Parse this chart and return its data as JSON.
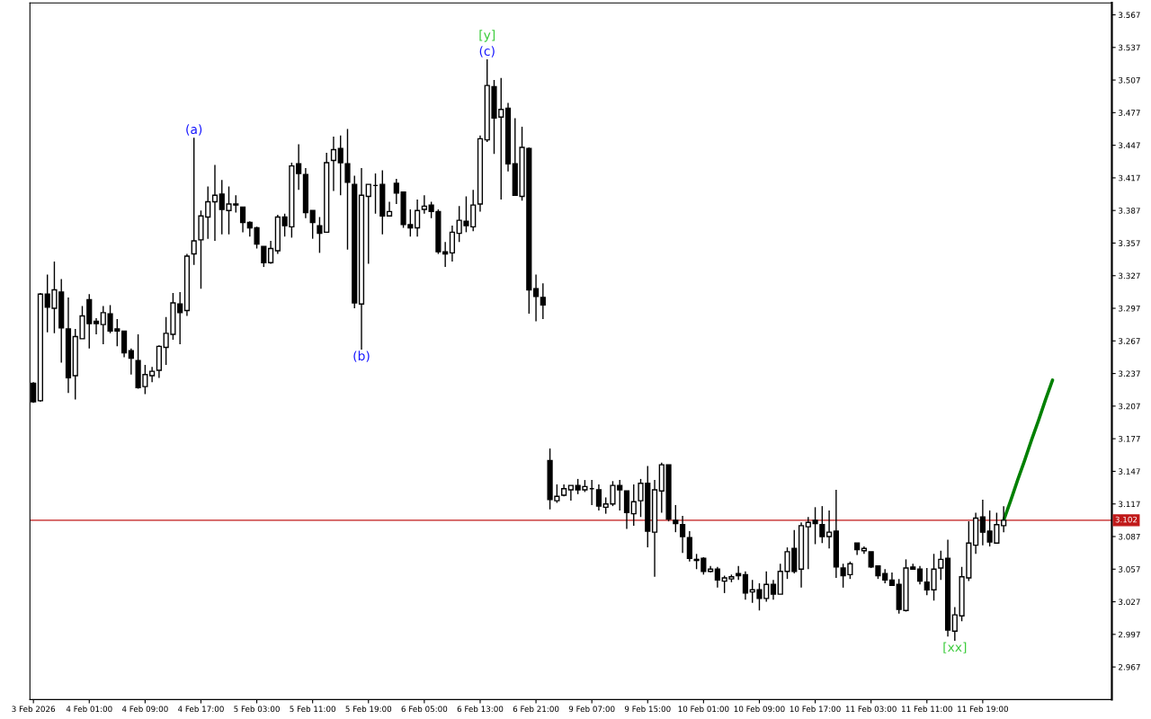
{
  "chart_data": {
    "type": "candlestick",
    "categories": [
      "3 Feb 2026",
      null,
      null,
      null,
      null,
      null,
      null,
      null,
      "4 Feb 01:00",
      null,
      null,
      null,
      null,
      null,
      null,
      null,
      "4 Feb 09:00",
      null,
      null,
      null,
      null,
      null,
      null,
      null,
      "4 Feb 17:00",
      null,
      null,
      null,
      null,
      null,
      null,
      null,
      "5 Feb 03:00",
      null,
      null,
      null,
      null,
      null,
      null,
      null,
      "5 Feb 11:00",
      null,
      null,
      null,
      null,
      null,
      null,
      null,
      "5 Feb 19:00",
      null,
      null,
      null,
      null,
      null,
      null,
      null,
      "6 Feb 05:00",
      null,
      null,
      null,
      null,
      null,
      null,
      null,
      "6 Feb 13:00",
      null,
      null,
      null,
      null,
      null,
      null,
      null,
      "6 Feb 21:00",
      null,
      null,
      null,
      null,
      null,
      null,
      null,
      "9 Feb 07:00",
      null,
      null,
      null,
      null,
      null,
      null,
      null,
      "9 Feb 15:00",
      null,
      null,
      null,
      null,
      null,
      null,
      null,
      "10 Feb 01:00",
      null,
      null,
      null,
      null,
      null,
      null,
      null,
      "10 Feb 09:00",
      null,
      null,
      null,
      null,
      null,
      null,
      null,
      "10 Feb 17:00",
      null,
      null,
      null,
      null,
      null,
      null,
      null,
      "11 Feb 03:00",
      null,
      null,
      null,
      null,
      null,
      null,
      null,
      "11 Feb 11:00",
      null,
      null,
      null,
      null,
      null,
      null,
      null,
      "11 Feb 19:00",
      null,
      null,
      null,
      null,
      null,
      null,
      null,
      null,
      null,
      null,
      null,
      null,
      null,
      null,
      null,
      null,
      null,
      null
    ],
    "ohlc": [
      [
        3.228,
        3.229,
        3.21,
        3.211
      ],
      [
        3.212,
        3.311,
        3.211,
        3.31
      ],
      [
        3.31,
        3.328,
        3.275,
        3.298
      ],
      [
        3.297,
        3.34,
        3.274,
        3.314
      ],
      [
        3.312,
        3.324,
        3.247,
        3.279
      ],
      [
        3.278,
        3.307,
        3.219,
        3.233
      ],
      [
        3.235,
        3.278,
        3.213,
        3.271
      ],
      [
        3.269,
        3.299,
        3.269,
        3.29
      ],
      [
        3.305,
        3.31,
        3.26,
        3.283
      ],
      [
        3.285,
        3.288,
        3.273,
        3.283
      ],
      [
        3.282,
        3.299,
        3.264,
        3.293
      ],
      [
        3.292,
        3.3,
        3.274,
        3.276
      ],
      [
        3.278,
        3.287,
        3.262,
        3.276
      ],
      [
        3.276,
        3.276,
        3.252,
        3.256
      ],
      [
        3.258,
        3.26,
        3.236,
        3.251
      ],
      [
        3.249,
        3.273,
        3.223,
        3.224
      ],
      [
        3.225,
        3.245,
        3.218,
        3.236
      ],
      [
        3.235,
        3.243,
        3.229,
        3.239
      ],
      [
        3.24,
        3.263,
        3.233,
        3.262
      ],
      [
        3.261,
        3.289,
        3.245,
        3.274
      ],
      [
        3.273,
        3.311,
        3.268,
        3.302
      ],
      [
        3.301,
        3.312,
        3.264,
        3.293
      ],
      [
        3.295,
        3.347,
        3.29,
        3.345
      ],
      [
        3.347,
        3.454,
        3.337,
        3.359
      ],
      [
        3.36,
        3.387,
        3.315,
        3.382
      ],
      [
        3.381,
        3.409,
        3.361,
        3.395
      ],
      [
        3.395,
        3.429,
        3.359,
        3.401
      ],
      [
        3.402,
        3.415,
        3.365,
        3.388
      ],
      [
        3.387,
        3.409,
        3.365,
        3.393
      ],
      [
        3.393,
        3.401,
        3.385,
        3.392
      ],
      [
        3.39,
        3.39,
        3.367,
        3.376
      ],
      [
        3.376,
        3.377,
        3.363,
        3.371
      ],
      [
        3.371,
        3.372,
        3.352,
        3.356
      ],
      [
        3.354,
        3.354,
        3.335,
        3.339
      ],
      [
        3.339,
        3.359,
        3.338,
        3.352
      ],
      [
        3.35,
        3.383,
        3.347,
        3.381
      ],
      [
        3.381,
        3.384,
        3.363,
        3.373
      ],
      [
        3.372,
        3.431,
        3.362,
        3.428
      ],
      [
        3.43,
        3.448,
        3.406,
        3.421
      ],
      [
        3.42,
        3.426,
        3.38,
        3.385
      ],
      [
        3.387,
        3.387,
        3.361,
        3.376
      ],
      [
        3.373,
        3.381,
        3.348,
        3.366
      ],
      [
        3.367,
        3.44,
        3.367,
        3.431
      ],
      [
        3.433,
        3.455,
        3.405,
        3.443
      ],
      [
        3.444,
        3.456,
        3.401,
        3.431
      ],
      [
        3.43,
        3.462,
        3.351,
        3.413
      ],
      [
        3.411,
        3.419,
        3.297,
        3.302
      ],
      [
        3.301,
        3.426,
        3.259,
        3.401
      ],
      [
        3.4,
        3.411,
        3.338,
        3.411
      ],
      [
        3.41,
        3.421,
        3.384,
        3.41
      ],
      [
        3.411,
        3.424,
        3.365,
        3.382
      ],
      [
        3.382,
        3.395,
        3.382,
        3.386
      ],
      [
        3.412,
        3.416,
        3.393,
        3.403
      ],
      [
        3.404,
        3.404,
        3.371,
        3.374
      ],
      [
        3.374,
        3.388,
        3.363,
        3.371
      ],
      [
        3.371,
        3.397,
        3.363,
        3.387
      ],
      [
        3.388,
        3.401,
        3.384,
        3.391
      ],
      [
        3.392,
        3.395,
        3.38,
        3.386
      ],
      [
        3.386,
        3.388,
        3.347,
        3.349
      ],
      [
        3.349,
        3.358,
        3.335,
        3.347
      ],
      [
        3.348,
        3.373,
        3.34,
        3.367
      ],
      [
        3.366,
        3.391,
        3.358,
        3.378
      ],
      [
        3.377,
        3.4,
        3.367,
        3.373
      ],
      [
        3.372,
        3.406,
        3.368,
        3.392
      ],
      [
        3.393,
        3.456,
        3.386,
        3.453
      ],
      [
        3.452,
        3.526,
        3.45,
        3.502
      ],
      [
        3.501,
        3.507,
        3.439,
        3.472
      ],
      [
        3.473,
        3.509,
        3.397,
        3.48
      ],
      [
        3.481,
        3.486,
        3.423,
        3.43
      ],
      [
        3.43,
        3.472,
        3.401,
        3.401
      ],
      [
        3.4,
        3.464,
        3.396,
        3.445
      ],
      [
        3.444,
        3.445,
        3.292,
        3.314
      ],
      [
        3.315,
        3.328,
        3.285,
        3.308
      ],
      [
        3.307,
        3.32,
        3.287,
        3.3
      ],
      [
        3.157,
        3.168,
        3.112,
        3.121
      ],
      [
        3.12,
        3.135,
        3.118,
        3.124
      ],
      [
        3.125,
        3.135,
        3.124,
        3.131
      ],
      [
        3.13,
        3.134,
        3.12,
        3.134
      ],
      [
        3.134,
        3.14,
        3.126,
        3.13
      ],
      [
        3.13,
        3.139,
        3.128,
        3.133
      ],
      [
        3.131,
        3.139,
        3.116,
        3.131
      ],
      [
        3.13,
        3.135,
        3.111,
        3.115
      ],
      [
        3.114,
        3.123,
        3.108,
        3.117
      ],
      [
        3.117,
        3.138,
        3.115,
        3.134
      ],
      [
        3.134,
        3.139,
        3.111,
        3.13
      ],
      [
        3.129,
        3.129,
        3.094,
        3.109
      ],
      [
        3.108,
        3.135,
        3.097,
        3.119
      ],
      [
        3.12,
        3.14,
        3.105,
        3.136
      ],
      [
        3.136,
        3.152,
        3.077,
        3.092
      ],
      [
        3.091,
        3.139,
        3.05,
        3.13
      ],
      [
        3.129,
        3.155,
        3.109,
        3.153
      ],
      [
        3.153,
        3.153,
        3.101,
        3.103
      ],
      [
        3.102,
        3.116,
        3.091,
        3.099
      ],
      [
        3.098,
        3.106,
        3.072,
        3.087
      ],
      [
        3.086,
        3.092,
        3.064,
        3.067
      ],
      [
        3.066,
        3.071,
        3.057,
        3.065
      ],
      [
        3.067,
        3.068,
        3.052,
        3.055
      ],
      [
        3.055,
        3.06,
        3.054,
        3.057
      ],
      [
        3.057,
        3.059,
        3.04,
        3.047
      ],
      [
        3.046,
        3.051,
        3.035,
        3.049
      ],
      [
        3.048,
        3.052,
        3.045,
        3.05
      ],
      [
        3.053,
        3.06,
        3.047,
        3.051
      ],
      [
        3.052,
        3.055,
        3.029,
        3.035
      ],
      [
        3.036,
        3.047,
        3.026,
        3.038
      ],
      [
        3.038,
        3.044,
        3.019,
        3.03
      ],
      [
        3.03,
        3.055,
        3.027,
        3.043
      ],
      [
        3.043,
        3.047,
        3.029,
        3.034
      ],
      [
        3.034,
        3.062,
        3.034,
        3.055
      ],
      [
        3.055,
        3.077,
        3.048,
        3.073
      ],
      [
        3.076,
        3.093,
        3.053,
        3.055
      ],
      [
        3.057,
        3.1,
        3.04,
        3.097
      ],
      [
        3.096,
        3.105,
        3.057,
        3.1
      ],
      [
        3.102,
        3.114,
        3.08,
        3.099
      ],
      [
        3.098,
        3.115,
        3.081,
        3.087
      ],
      [
        3.087,
        3.111,
        3.076,
        3.091
      ],
      [
        3.092,
        3.13,
        3.049,
        3.059
      ],
      [
        3.058,
        3.062,
        3.04,
        3.051
      ],
      [
        3.052,
        3.064,
        3.048,
        3.062
      ],
      [
        3.081,
        3.081,
        3.07,
        3.075
      ],
      [
        3.074,
        3.078,
        3.071,
        3.076
      ],
      [
        3.073,
        3.073,
        3.058,
        3.059
      ],
      [
        3.06,
        3.06,
        3.048,
        3.051
      ],
      [
        3.053,
        3.057,
        3.044,
        3.047
      ],
      [
        3.047,
        3.054,
        3.042,
        3.042
      ],
      [
        3.043,
        3.048,
        3.016,
        3.02
      ],
      [
        3.019,
        3.066,
        3.018,
        3.058
      ],
      [
        3.059,
        3.062,
        3.057,
        3.057
      ],
      [
        3.057,
        3.06,
        3.043,
        3.046
      ],
      [
        3.045,
        3.058,
        3.033,
        3.038
      ],
      [
        3.038,
        3.071,
        3.028,
        3.057
      ],
      [
        3.058,
        3.074,
        3.047,
        3.066
      ],
      [
        3.067,
        3.084,
        2.995,
        3.001
      ],
      [
        3.0,
        3.022,
        2.991,
        3.015
      ],
      [
        3.014,
        3.059,
        3.009,
        3.05
      ],
      [
        3.049,
        3.101,
        3.046,
        3.081
      ],
      [
        3.079,
        3.109,
        3.071,
        3.104
      ],
      [
        3.105,
        3.121,
        3.079,
        3.091
      ],
      [
        3.092,
        3.111,
        3.078,
        3.082
      ],
      [
        3.081,
        3.109,
        3.081,
        3.098
      ],
      [
        3.097,
        3.115,
        3.091,
        3.102
      ],
      null,
      null,
      null,
      null,
      null,
      null,
      null,
      null,
      null,
      null,
      null,
      null,
      null,
      null,
      null
    ],
    "series": [
      {
        "type": "line",
        "color": "#008000",
        "values": [
          null,
          null,
          null,
          null,
          null,
          null,
          null,
          null,
          null,
          null,
          null,
          null,
          null,
          null,
          null,
          null,
          null,
          null,
          null,
          null,
          null,
          null,
          null,
          null,
          null,
          null,
          null,
          null,
          null,
          null,
          null,
          null,
          null,
          null,
          null,
          null,
          null,
          null,
          null,
          null,
          null,
          null,
          null,
          null,
          null,
          null,
          null,
          null,
          null,
          null,
          null,
          null,
          null,
          null,
          null,
          null,
          null,
          null,
          null,
          null,
          null,
          null,
          null,
          null,
          null,
          null,
          null,
          null,
          null,
          null,
          null,
          null,
          null,
          null,
          null,
          null,
          null,
          null,
          null,
          null,
          null,
          null,
          null,
          null,
          null,
          null,
          null,
          null,
          null,
          null,
          null,
          null,
          null,
          null,
          null,
          null,
          null,
          null,
          null,
          null,
          null,
          null,
          null,
          null,
          null,
          null,
          null,
          null,
          null,
          null,
          null,
          null,
          null,
          null,
          null,
          null,
          null,
          null,
          null,
          null,
          null,
          null,
          null,
          null,
          null,
          null,
          null,
          null,
          null,
          null,
          null,
          null,
          null,
          null,
          null,
          null,
          null,
          null,
          null,
          3.102,
          3.12,
          3.139,
          3.157,
          3.176,
          3.194,
          3.213,
          3.231,
          null,
          null,
          null,
          null,
          null,
          null,
          null,
          null
        ]
      }
    ],
    "ylim": [
      2.937,
      3.578
    ],
    "yticks": [
      2.967,
      2.997,
      3.027,
      3.057,
      3.087,
      3.117,
      3.147,
      3.177,
      3.207,
      3.237,
      3.267,
      3.297,
      3.327,
      3.357,
      3.387,
      3.417,
      3.447,
      3.477,
      3.507,
      3.537,
      3.567
    ],
    "ref_lines": [
      {
        "axis": "y",
        "value": 3.102,
        "label": "3.102",
        "color": "#c01818"
      }
    ],
    "annotations": [
      {
        "text": "(a)",
        "y": 3.454
      },
      {
        "text": "(b)",
        "y": 3.259
      },
      {
        "text": "(c)",
        "y": 3.526
      },
      {
        "text": "[y]",
        "y": 3.526
      },
      {
        "text": "[xx]",
        "y": 2.991
      }
    ]
  }
}
